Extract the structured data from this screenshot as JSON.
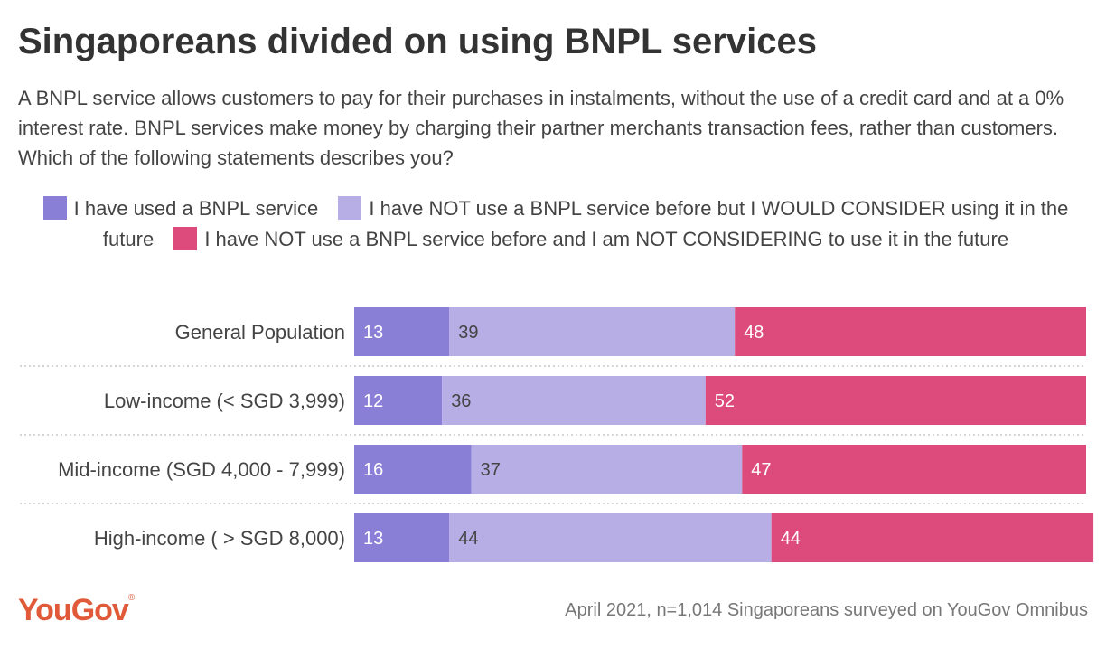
{
  "title": "Singaporeans divided on using BNPL services",
  "subtitle": "A BNPL service allows customers to pay for their purchases in instalments, without the use of a credit card and at a 0% interest rate. BNPL services make money by charging their partner merchants transaction fees, rather than customers. Which of the following statements describes you?",
  "footer": "April 2021, n=1,014 Singaporeans surveyed on YouGov Omnibus",
  "logo": "YouGov",
  "chart_data": {
    "type": "bar",
    "orientation": "horizontal",
    "stacked": true,
    "categories": [
      "General Population",
      "Low-income (< SGD 3,999)",
      "Mid-income (SGD 4,000 - 7,999)",
      "High-income ( > SGD 8,000)"
    ],
    "series": [
      {
        "name": "I have used a BNPL service",
        "color": "#8a7fd6",
        "values": [
          13,
          12,
          16,
          13
        ]
      },
      {
        "name": "I have NOT use a BNPL service before but I WOULD CONSIDER using it in the future",
        "color": "#b8aee6",
        "values": [
          39,
          36,
          37,
          44
        ]
      },
      {
        "name": "I have NOT use a BNPL service before and I am NOT CONSIDERING to use it in the future",
        "color": "#dd4b7c",
        "values": [
          48,
          52,
          47,
          44
        ]
      }
    ],
    "xlim": [
      0,
      100
    ],
    "legend_position": "top",
    "grid": false
  }
}
